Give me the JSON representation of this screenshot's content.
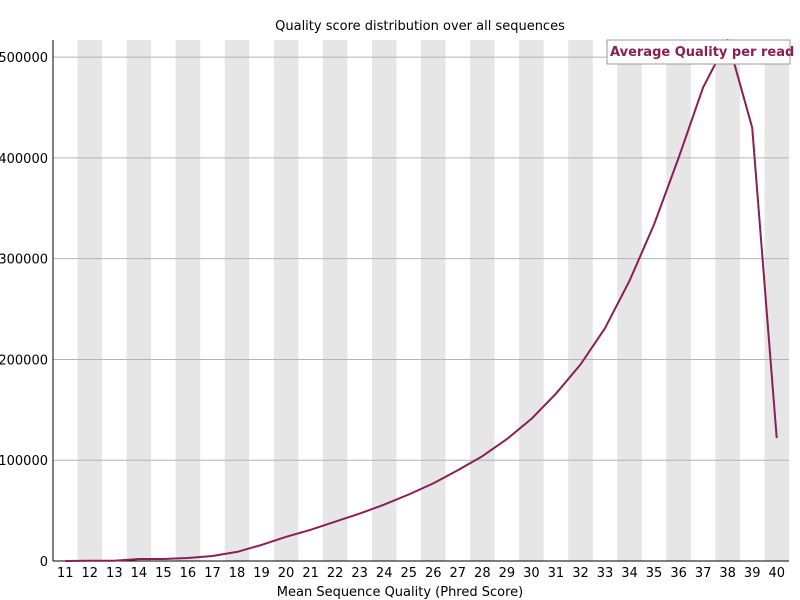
{
  "chart_data": {
    "type": "line",
    "title": "Quality score distribution over all sequences",
    "xlabel": "Mean Sequence Quality (Phred Score)",
    "ylabel": "",
    "categories": [
      "11",
      "12",
      "13",
      "14",
      "15",
      "16",
      "17",
      "18",
      "19",
      "20",
      "21",
      "22",
      "23",
      "24",
      "25",
      "26",
      "27",
      "28",
      "29",
      "30",
      "31",
      "32",
      "33",
      "34",
      "35",
      "36",
      "37",
      "38",
      "39",
      "40"
    ],
    "series": [
      {
        "name": "Average Quality per read",
        "color": "#8b1f55",
        "values": [
          0,
          200,
          200,
          2000,
          2000,
          3000,
          5000,
          9000,
          16000,
          24000,
          31000,
          39000,
          47000,
          56000,
          66000,
          77000,
          90000,
          104000,
          121000,
          141000,
          166000,
          195000,
          231000,
          278000,
          334000,
          400000,
          470000,
          517000,
          430000,
          122000
        ]
      }
    ],
    "ylim": [
      0,
      517000
    ],
    "yticks": [
      0,
      100000,
      200000,
      300000,
      400000,
      500000
    ],
    "ytick_labels": [
      "0",
      "100000",
      "200000",
      "300000",
      "400000",
      "500000"
    ],
    "grid": true,
    "legend_position": "top-right",
    "colors": {
      "band": "#e6e6e6",
      "gridline": "#b4b4b4",
      "line": "#8b1f55"
    }
  }
}
